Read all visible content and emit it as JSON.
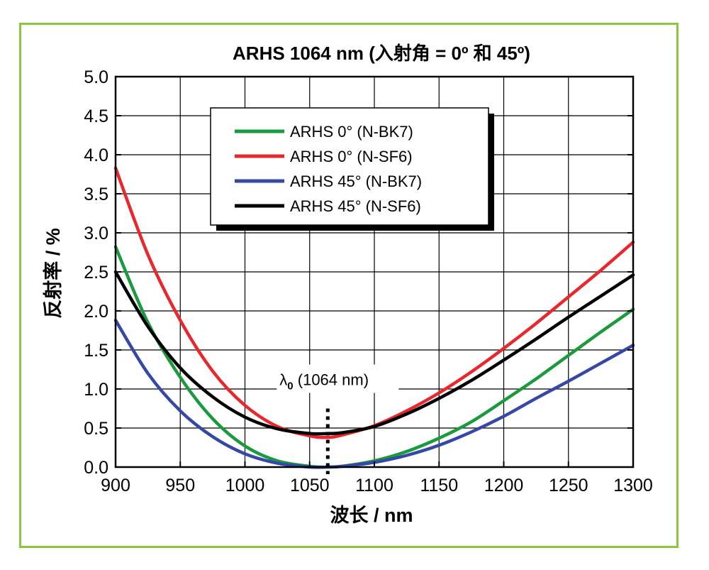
{
  "chart_data": {
    "type": "line",
    "title": "ARHS 1064 nm (入射角 = 0º 和 45º)",
    "xlabel": "波长 / nm",
    "ylabel": "反射率 / %",
    "xlim": [
      900,
      1300
    ],
    "ylim": [
      0,
      5
    ],
    "xticks": [
      900,
      950,
      1000,
      1050,
      1100,
      1150,
      1200,
      1250,
      1300
    ],
    "yticks": [
      0.0,
      0.5,
      1.0,
      1.5,
      2.0,
      2.5,
      3.0,
      3.5,
      4.0,
      4.5,
      5.0
    ],
    "xtick_labels": [
      "900",
      "950",
      "1000",
      "1050",
      "1100",
      "1150",
      "1200",
      "1250",
      "1300"
    ],
    "ytick_labels": [
      "0.0",
      "0.5",
      "1.0",
      "1.5",
      "2.0",
      "2.5",
      "3.0",
      "3.5",
      "4.0",
      "4.5",
      "5.0"
    ],
    "grid": true,
    "legend_position": "top-center",
    "series": [
      {
        "name": "ARHS 0° (N-BK7)",
        "color": "#1a9a3c",
        "x": [
          900,
          925,
          950,
          975,
          1000,
          1025,
          1050,
          1064,
          1075,
          1100,
          1125,
          1150,
          1175,
          1200,
          1225,
          1250,
          1275,
          1300
        ],
        "y": [
          2.82,
          1.85,
          1.15,
          0.62,
          0.27,
          0.08,
          0.01,
          0.0,
          0.01,
          0.08,
          0.2,
          0.37,
          0.58,
          0.85,
          1.13,
          1.43,
          1.73,
          2.02
        ]
      },
      {
        "name": "ARHS 0° (N-SF6)",
        "color": "#e8282d",
        "x": [
          900,
          925,
          950,
          975,
          1000,
          1025,
          1050,
          1064,
          1075,
          1100,
          1125,
          1150,
          1175,
          1200,
          1225,
          1250,
          1275,
          1300
        ],
        "y": [
          3.83,
          2.72,
          1.88,
          1.23,
          0.79,
          0.52,
          0.4,
          0.38,
          0.41,
          0.53,
          0.72,
          0.95,
          1.22,
          1.52,
          1.84,
          2.18,
          2.52,
          2.88
        ]
      },
      {
        "name": "ARHS 45° (N-BK7)",
        "color": "#3548a5",
        "x": [
          900,
          925,
          950,
          975,
          1000,
          1025,
          1050,
          1064,
          1075,
          1100,
          1125,
          1150,
          1175,
          1200,
          1225,
          1250,
          1275,
          1300
        ],
        "y": [
          1.88,
          1.2,
          0.72,
          0.39,
          0.17,
          0.05,
          0.0,
          0.0,
          0.01,
          0.06,
          0.15,
          0.28,
          0.45,
          0.65,
          0.88,
          1.1,
          1.33,
          1.56
        ]
      },
      {
        "name": "ARHS 45° (N-SF6)",
        "color": "#000000",
        "x": [
          900,
          925,
          950,
          975,
          1000,
          1025,
          1050,
          1064,
          1075,
          1100,
          1125,
          1150,
          1175,
          1200,
          1225,
          1250,
          1275,
          1300
        ],
        "y": [
          2.5,
          1.8,
          1.27,
          0.9,
          0.64,
          0.49,
          0.43,
          0.43,
          0.44,
          0.52,
          0.68,
          0.88,
          1.11,
          1.37,
          1.64,
          1.92,
          2.19,
          2.46
        ]
      }
    ],
    "annotations": [
      {
        "label_main": "λ",
        "label_sub": "0",
        "label_rest": " (1064 nm)",
        "x": 1064,
        "marker_from_y": 0.0,
        "marker_to_y": 0.75
      }
    ]
  }
}
